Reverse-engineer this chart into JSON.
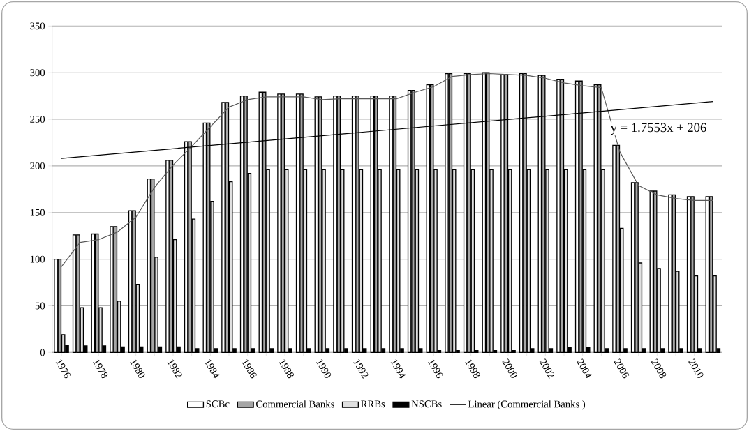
{
  "chart_data": {
    "type": "bar",
    "categories": [
      "1976",
      null,
      "1978",
      null,
      "1980",
      null,
      "1982",
      null,
      "1984",
      null,
      "1986",
      null,
      "1988",
      null,
      "1990",
      null,
      "1992",
      null,
      "1994",
      null,
      "1996",
      null,
      "1998",
      null,
      "2000",
      null,
      "2002",
      null,
      "2004",
      null,
      "2006",
      null,
      "2008",
      null,
      "2010",
      null
    ],
    "series": [
      {
        "name": "SCBc",
        "color": "#ffffff",
        "values": [
          100,
          126,
          127,
          135,
          152,
          186,
          206,
          226,
          246,
          268,
          275,
          279,
          277,
          277,
          274,
          275,
          275,
          275,
          275,
          281,
          287,
          299,
          299,
          300,
          298,
          299,
          297,
          293,
          291,
          287,
          222,
          182,
          173,
          169,
          167,
          167
        ]
      },
      {
        "name": "Commercial Banks",
        "color": "#a6a6a6",
        "values": [
          100,
          126,
          127,
          135,
          152,
          186,
          206,
          226,
          246,
          268,
          275,
          279,
          277,
          277,
          274,
          275,
          275,
          275,
          275,
          281,
          287,
          299,
          299,
          300,
          298,
          299,
          297,
          293,
          291,
          287,
          222,
          182,
          173,
          169,
          167,
          167
        ]
      },
      {
        "name": "RRBs",
        "color": "#e0e0e0",
        "values": [
          19,
          48,
          48,
          55,
          73,
          102,
          121,
          143,
          162,
          183,
          192,
          196,
          196,
          196,
          196,
          196,
          196,
          196,
          196,
          196,
          196,
          196,
          196,
          196,
          196,
          196,
          196,
          196,
          196,
          196,
          133,
          96,
          90,
          87,
          82,
          82
        ]
      },
      {
        "name": "NSCBs",
        "color": "#000000",
        "values": [
          8,
          7,
          7,
          6,
          6,
          6,
          6,
          4,
          4,
          4,
          4,
          4,
          4,
          4,
          4,
          4,
          4,
          4,
          4,
          4,
          2,
          2,
          2,
          2,
          2,
          4,
          4,
          5,
          5,
          4,
          4,
          4,
          4,
          4,
          4,
          4
        ]
      },
      {
        "type": "line",
        "color": "#595959",
        "values": [
          92,
          118,
          121,
          129,
          145,
          177,
          201,
          221,
          242,
          263,
          271,
          274,
          274,
          274,
          271,
          272,
          272,
          272,
          272,
          279,
          285,
          296,
          298,
          299,
          298,
          297,
          294,
          289,
          286,
          284,
          215,
          179,
          169,
          165,
          163,
          163
        ]
      },
      {
        "type": "line",
        "name": "Linear (Commercial Banks )",
        "color": "#000000",
        "values": [
          208,
          null,
          null,
          null,
          null,
          null,
          null,
          null,
          null,
          null,
          null,
          null,
          null,
          null,
          null,
          null,
          null,
          null,
          null,
          null,
          null,
          null,
          null,
          null,
          null,
          null,
          null,
          null,
          null,
          null,
          null,
          null,
          null,
          null,
          null,
          269
        ]
      }
    ],
    "ylim": [
      0,
      350
    ],
    "yticks": [
      0,
      50,
      100,
      150,
      200,
      250,
      300,
      350
    ],
    "grid": "y",
    "legend": "bottom",
    "annotations": [
      "y = 1.7553x + 206"
    ]
  }
}
